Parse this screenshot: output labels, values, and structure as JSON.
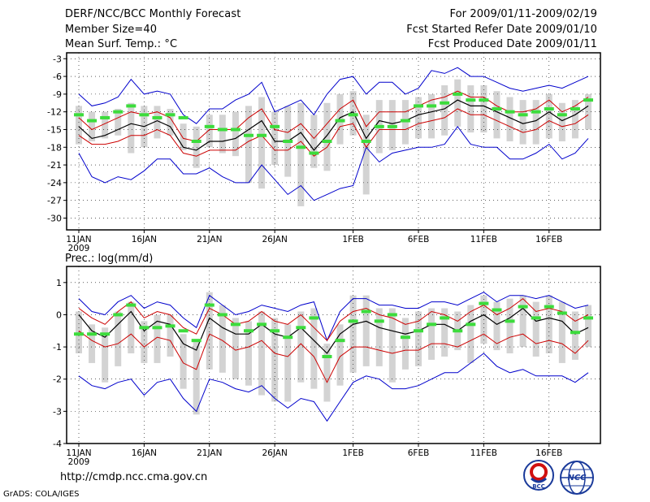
{
  "header": {
    "title": "DERF/NCC/BCC Monthly Forecast",
    "member_size": "Member Size=40",
    "variable1": "Mean Surf. Temp.: °C",
    "period": "For 2009/01/11-2009/02/19",
    "start_date": "Fcst Started Refer Date 2009/01/10",
    "produced_date": "Fcst Produced Date 2009/01/11"
  },
  "footer": {
    "url": "http://cmdp.ncc.cma.gov.cn",
    "grads": "GrADS: COLA/IGES",
    "logo1_text": "BCC",
    "logo2_text": "NCC"
  },
  "colors": {
    "spread": "#d3d3d3",
    "mean": "#3cdc3c",
    "ens": "#000000",
    "sd": "#cc0000",
    "minmax": "#0000cc",
    "grid": "#000000"
  },
  "chart_data": [
    {
      "type": "line",
      "title": "Mean Surf. Temp.: °C",
      "xlabel": "",
      "ylabel": "",
      "x_tick_labels": [
        "11JAN",
        "16JAN",
        "21JAN",
        "26JAN",
        "1FEB",
        "6FEB",
        "11FEB",
        "16FEB"
      ],
      "x_tick_days": [
        1,
        6,
        11,
        16,
        22,
        27,
        32,
        37
      ],
      "x_year_label": "2009",
      "ylim": [
        -32,
        -2
      ],
      "y_ticks": [
        -3,
        -6,
        -9,
        -12,
        -15,
        -18,
        -21,
        -24,
        -27,
        -30
      ],
      "days": [
        1,
        2,
        3,
        4,
        5,
        6,
        7,
        8,
        9,
        10,
        11,
        12,
        13,
        14,
        15,
        16,
        17,
        18,
        19,
        20,
        21,
        22,
        23,
        24,
        25,
        26,
        27,
        28,
        29,
        30,
        31,
        32,
        33,
        34,
        35,
        36,
        37,
        38,
        39,
        40
      ],
      "series": [
        {
          "name": "ens_mean",
          "values": [
            -14.5,
            -16.5,
            -16,
            -15,
            -14,
            -14.5,
            -13.5,
            -14.5,
            -18,
            -18.5,
            -17,
            -17,
            -16.5,
            -15,
            -13.5,
            -17,
            -17,
            -15.5,
            -18.5,
            -16,
            -13,
            -12,
            -16.5,
            -13.5,
            -14,
            -13.5,
            -12.5,
            -12,
            -11.5,
            -10,
            -11,
            -11,
            -12,
            -13,
            -14,
            -13.5,
            -12,
            -13.5,
            -12.5,
            -11
          ]
        },
        {
          "name": "sd_upper",
          "values": [
            -13,
            -15,
            -14,
            -13,
            -12,
            -12.5,
            -12,
            -13,
            -16.5,
            -17,
            -15,
            -15,
            -15,
            -13,
            -11.5,
            -15,
            -15.5,
            -14,
            -16.5,
            -14,
            -11.5,
            -10,
            -14.5,
            -12,
            -12,
            -12,
            -11,
            -10,
            -9.5,
            -8.5,
            -9.5,
            -9.5,
            -11,
            -12,
            -12,
            -11.5,
            -10,
            -12,
            -11,
            -9.5
          ]
        },
        {
          "name": "sd_lower",
          "values": [
            -16,
            -17.5,
            -17.5,
            -17,
            -16,
            -16,
            -15,
            -16,
            -19,
            -19.5,
            -18.5,
            -18.5,
            -18.5,
            -17,
            -16,
            -18.5,
            -18.5,
            -17,
            -19.5,
            -18,
            -14.5,
            -14,
            -18,
            -15,
            -15,
            -15,
            -14,
            -13.5,
            -13,
            -11.5,
            -12.5,
            -12.5,
            -13.5,
            -14.5,
            -15.5,
            -15,
            -13.5,
            -14.5,
            -14,
            -12.5
          ]
        },
        {
          "name": "max",
          "values": [
            -9,
            -11,
            -10.5,
            -9.5,
            -6.5,
            -9,
            -8.5,
            -9,
            -12.5,
            -14,
            -11.5,
            -11.5,
            -10,
            -9,
            -7,
            -12,
            -11,
            -10,
            -12.5,
            -9,
            -6.5,
            -6,
            -9,
            -7,
            -7,
            -9,
            -8,
            -5,
            -5.5,
            -4.5,
            -6,
            -6,
            -7,
            -8,
            -8.5,
            -8,
            -7.5,
            -8,
            -7,
            -6
          ]
        },
        {
          "name": "min",
          "values": [
            -19,
            -23,
            -24,
            -23,
            -23.5,
            -22,
            -20,
            -20,
            -22.5,
            -22.5,
            -21.5,
            -23,
            -24,
            -24,
            -21,
            -23.5,
            -26,
            -24.5,
            -27,
            -26,
            -25,
            -24.5,
            -18,
            -20.5,
            -19,
            -18.5,
            -18,
            -18,
            -17.5,
            -14.5,
            -17.5,
            -18,
            -18,
            -20,
            -20,
            -19,
            -17.5,
            -20,
            -19,
            -16.5
          ]
        },
        {
          "name": "members_mean",
          "values": [
            -12.5,
            -13.5,
            -13,
            -12,
            -11,
            -12.5,
            -13,
            -12.5,
            -13,
            -17,
            -14.5,
            -15,
            -15,
            -16,
            -16,
            -14.5,
            -17,
            -18,
            -19,
            -17,
            -13.5,
            -12.5,
            -17,
            -14.5,
            -14.5,
            -13.5,
            -11,
            -11,
            -10.5,
            -9,
            -10,
            -10,
            -11.5,
            -12,
            -12.5,
            -12,
            -11.5,
            -12.5,
            -11.5,
            -10
          ]
        },
        {
          "name": "spread_high",
          "values": [
            -11,
            -12,
            -12,
            -11.5,
            -10.5,
            -11,
            -11,
            -11.5,
            -14,
            -14.5,
            -12.5,
            -12.5,
            -12,
            -11,
            -9.5,
            -12,
            -11,
            -10.5,
            -12.5,
            -10.5,
            -9,
            -8.5,
            -12.5,
            -10,
            -10,
            -10,
            -9.5,
            -9,
            -7.5,
            -6.5,
            -7.5,
            -7.5,
            -8.5,
            -9.5,
            -10,
            -10,
            -9,
            -10.5,
            -10,
            -9
          ]
        },
        {
          "name": "spread_low",
          "values": [
            -17.5,
            -17,
            -16.5,
            -16,
            -19,
            -18,
            -16.5,
            -16,
            -18.5,
            -21.5,
            -18,
            -19,
            -19.5,
            -24,
            -25,
            -21,
            -23,
            -28,
            -21.5,
            -22,
            -17.5,
            -16,
            -26,
            -19,
            -18.5,
            -17.5,
            -16.5,
            -16.5,
            -16,
            -14.5,
            -15.5,
            -15.5,
            -16.5,
            -17,
            -17.5,
            -17.5,
            -16.5,
            -17,
            -16.5,
            -15
          ]
        }
      ]
    },
    {
      "type": "line",
      "title": "Prec.: log(mm/d)",
      "xlabel": "",
      "ylabel": "",
      "x_tick_labels": [
        "11JAN",
        "16JAN",
        "21JAN",
        "26JAN",
        "1FEB",
        "6FEB",
        "11FEB",
        "16FEB"
      ],
      "x_tick_days": [
        1,
        6,
        11,
        16,
        22,
        27,
        32,
        37
      ],
      "x_year_label": "2009",
      "ylim": [
        -4,
        1.5
      ],
      "y_ticks": [
        1,
        0,
        -1,
        -2,
        -3,
        -4
      ],
      "days": [
        1,
        2,
        3,
        4,
        5,
        6,
        7,
        8,
        9,
        10,
        11,
        12,
        13,
        14,
        15,
        16,
        17,
        18,
        19,
        20,
        21,
        22,
        23,
        24,
        25,
        26,
        27,
        28,
        29,
        30,
        31,
        32,
        33,
        34,
        35,
        36,
        37,
        38,
        39,
        40
      ],
      "series": [
        {
          "name": "ens_mean",
          "values": [
            0,
            -0.5,
            -0.7,
            -0.3,
            0.1,
            -0.5,
            -0.2,
            -0.3,
            -0.9,
            -1.1,
            -0.1,
            -0.4,
            -0.6,
            -0.6,
            -0.3,
            -0.6,
            -0.7,
            -0.4,
            -0.8,
            -1.2,
            -0.6,
            -0.3,
            -0.2,
            -0.4,
            -0.5,
            -0.6,
            -0.5,
            -0.3,
            -0.3,
            -0.5,
            -0.2,
            0,
            -0.3,
            -0.1,
            0.2,
            -0.2,
            -0.1,
            -0.2,
            -0.6,
            -0.4
          ]
        },
        {
          "name": "sd_upper",
          "values": [
            0.2,
            -0.1,
            -0.3,
            0.1,
            0.4,
            -0.1,
            0.1,
            0,
            -0.4,
            -0.6,
            0.2,
            0,
            -0.3,
            -0.2,
            0.1,
            -0.2,
            -0.3,
            0,
            -0.4,
            -0.8,
            -0.2,
            0.1,
            0.2,
            0,
            -0.1,
            -0.3,
            -0.2,
            0.1,
            0,
            -0.2,
            0.1,
            0.3,
            0,
            0.2,
            0.5,
            0.1,
            0.2,
            0.1,
            -0.2,
            0
          ]
        },
        {
          "name": "sd_lower",
          "values": [
            -0.5,
            -0.8,
            -1,
            -0.9,
            -0.6,
            -1,
            -0.7,
            -0.8,
            -1.5,
            -1.7,
            -0.6,
            -0.8,
            -1.1,
            -1,
            -0.8,
            -1.2,
            -1.3,
            -0.9,
            -1.3,
            -2.1,
            -1.3,
            -1,
            -1,
            -1.1,
            -1.2,
            -1.1,
            -1.1,
            -0.9,
            -0.9,
            -1,
            -0.8,
            -0.6,
            -0.9,
            -0.7,
            -0.6,
            -0.9,
            -0.8,
            -0.9,
            -1.2,
            -0.8
          ]
        },
        {
          "name": "max",
          "values": [
            0.5,
            0.1,
            0,
            0.4,
            0.6,
            0.2,
            0.4,
            0.3,
            -0.1,
            -0.4,
            0.6,
            0.3,
            0,
            0.1,
            0.3,
            0.2,
            0.1,
            0.3,
            0.4,
            -0.8,
            0.1,
            0.5,
            0.5,
            0.3,
            0.3,
            0.2,
            0.2,
            0.4,
            0.4,
            0.3,
            0.5,
            0.7,
            0.4,
            0.6,
            0.6,
            0.5,
            0.6,
            0.4,
            0.2,
            0.3
          ]
        },
        {
          "name": "min",
          "values": [
            -1.9,
            -2.2,
            -2.3,
            -2.1,
            -2,
            -2.5,
            -2.1,
            -2,
            -2.6,
            -3,
            -2,
            -2.1,
            -2.3,
            -2.4,
            -2.2,
            -2.6,
            -2.9,
            -2.6,
            -2.7,
            -3.3,
            -2.7,
            -2.1,
            -1.9,
            -2,
            -2.3,
            -2.3,
            -2.2,
            -2,
            -1.8,
            -1.8,
            -1.5,
            -1.2,
            -1.6,
            -1.8,
            -1.7,
            -1.9,
            -1.9,
            -1.9,
            -2.1,
            -1.8
          ]
        },
        {
          "name": "members_mean",
          "values": [
            -0.6,
            -0.6,
            -0.6,
            0,
            0.3,
            -0.4,
            -0.4,
            -0.35,
            -0.5,
            -0.8,
            0.3,
            0,
            -0.3,
            -0.5,
            -0.3,
            -0.5,
            -0.7,
            -0.4,
            -0.1,
            -1.3,
            -0.8,
            -0.2,
            0.1,
            -0.2,
            0,
            -0.7,
            -0.5,
            -0.3,
            -0.1,
            -0.5,
            -0.3,
            0.35,
            0.15,
            -0.2,
            0.25,
            -0.1,
            0.25,
            0.05,
            -0.55,
            -0.1
          ]
        },
        {
          "name": "spread_high",
          "values": [
            0.1,
            -0.3,
            -0.4,
            0.1,
            0.4,
            -0.2,
            0,
            0,
            -0.6,
            -0.8,
            0.7,
            0.3,
            -0.1,
            -0.2,
            0.1,
            -0.1,
            -0.3,
            0.1,
            0.2,
            -0.9,
            -0.3,
            0.6,
            0.6,
            0.2,
            0.2,
            -0.1,
            0.1,
            0.2,
            0.2,
            0.1,
            0.3,
            0.6,
            0.4,
            0.5,
            0.6,
            0.4,
            0.6,
            0.4,
            0.1,
            0.3
          ]
        },
        {
          "name": "spread_low",
          "values": [
            -1.2,
            -1.5,
            -2.1,
            -1.6,
            -1.2,
            -1.5,
            -1.5,
            -1.3,
            -2.3,
            -3.1,
            -1.7,
            -1.8,
            -2,
            -2.2,
            -2.5,
            -2.7,
            -2.7,
            -2.1,
            -2.3,
            -2.7,
            -2.2,
            -1.8,
            -1.6,
            -1.6,
            -2.1,
            -1.7,
            -1.6,
            -1.4,
            -1.3,
            -1.1,
            -1.5,
            -0.9,
            -1.1,
            -1.2,
            -1,
            -1.3,
            -1.2,
            -1.5,
            -1.4,
            -1
          ]
        }
      ]
    }
  ]
}
